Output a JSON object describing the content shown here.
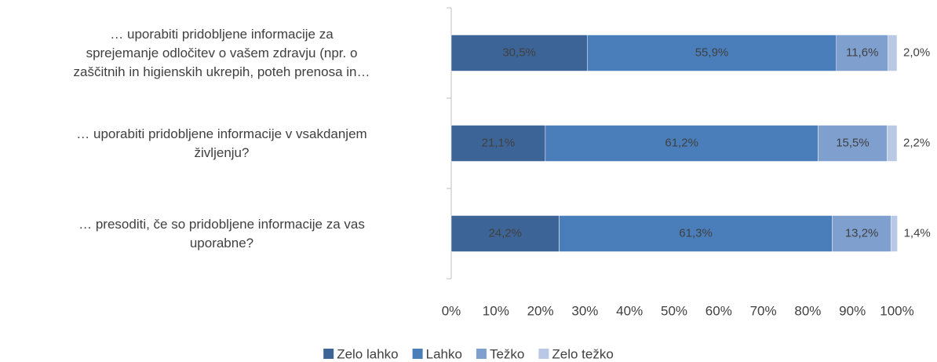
{
  "chart_data": {
    "type": "stacked_barh",
    "categories": [
      "… uporabiti pridobljene informacije za\nsprejemanje odločitev o vašem zdravju (npr. o\nzaščitnih in higienskih ukrepih, poteh prenosa in…",
      "… uporabiti pridobljene informacije v vsakdanjem\nživljenju?",
      "… presoditi, če so pridobljene informacije za vas\nuporabne?"
    ],
    "series": [
      {
        "name": "Zelo lahko",
        "color": "#3d6496",
        "values": [
          30.5,
          21.1,
          24.2
        ],
        "value_labels": [
          "30,5%",
          "21,1%",
          "24,2%"
        ]
      },
      {
        "name": "Lahko",
        "color": "#4a7ebb",
        "values": [
          55.9,
          61.2,
          61.3
        ],
        "value_labels": [
          "55,9%",
          "61,2%",
          "61,3%"
        ]
      },
      {
        "name": "Težko",
        "color": "#7f9fcf",
        "values": [
          11.6,
          15.5,
          13.2
        ],
        "value_labels": [
          "11,6%",
          "15,5%",
          "13,2%"
        ]
      },
      {
        "name": "Zelo težko",
        "color": "#b9c9e5",
        "values": [
          2.0,
          2.2,
          1.4
        ],
        "value_labels": [
          "2,0%",
          "2,2%",
          "1,4%"
        ]
      }
    ],
    "xlim": [
      0,
      100
    ],
    "xticks": [
      {
        "value": 0,
        "label": "0%"
      },
      {
        "value": 10,
        "label": "10%"
      },
      {
        "value": 20,
        "label": "20%"
      },
      {
        "value": 30,
        "label": "30%"
      },
      {
        "value": 40,
        "label": "40%"
      },
      {
        "value": 50,
        "label": "50%"
      },
      {
        "value": 60,
        "label": "60%"
      },
      {
        "value": 70,
        "label": "70%"
      },
      {
        "value": 80,
        "label": "80%"
      },
      {
        "value": 90,
        "label": "90%"
      },
      {
        "value": 100,
        "label": "100%"
      }
    ],
    "legend": "bottom"
  }
}
